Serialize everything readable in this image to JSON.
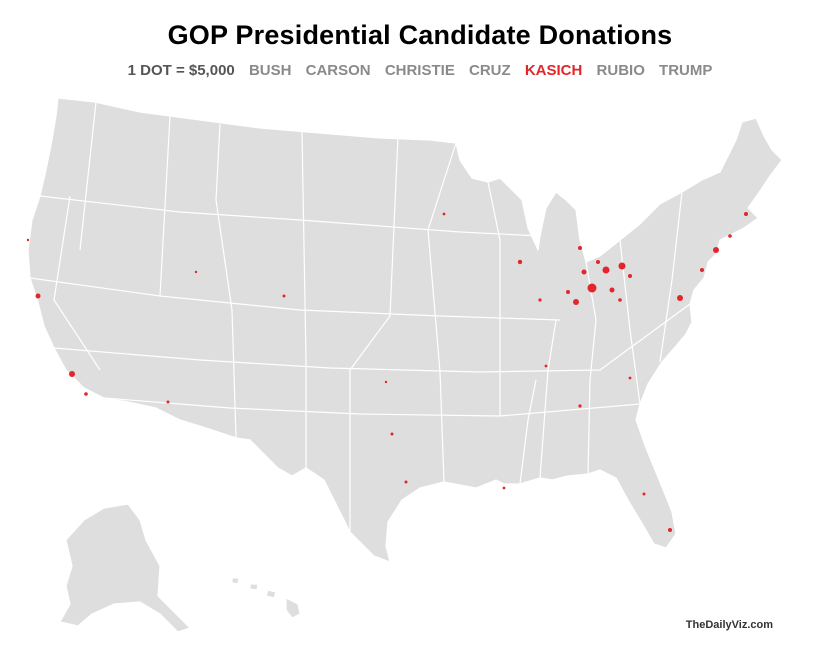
{
  "title": "GOP Presidential Candidate Donations",
  "legend": {
    "scale_label": "1 DOT = $5,000",
    "candidates": [
      {
        "name": "BUSH",
        "active": false
      },
      {
        "name": "CARSON",
        "active": false
      },
      {
        "name": "CHRISTIE",
        "active": false
      },
      {
        "name": "CRUZ",
        "active": false
      },
      {
        "name": "KASICH",
        "active": true
      },
      {
        "name": "RUBIO",
        "active": false
      },
      {
        "name": "TRUMP",
        "active": false
      }
    ]
  },
  "colors": {
    "land": "#dedede",
    "border": "#ffffff",
    "dot": "#e3262b",
    "inactive_text": "#8a8a8a"
  },
  "credit": "TheDailyViz.com"
}
